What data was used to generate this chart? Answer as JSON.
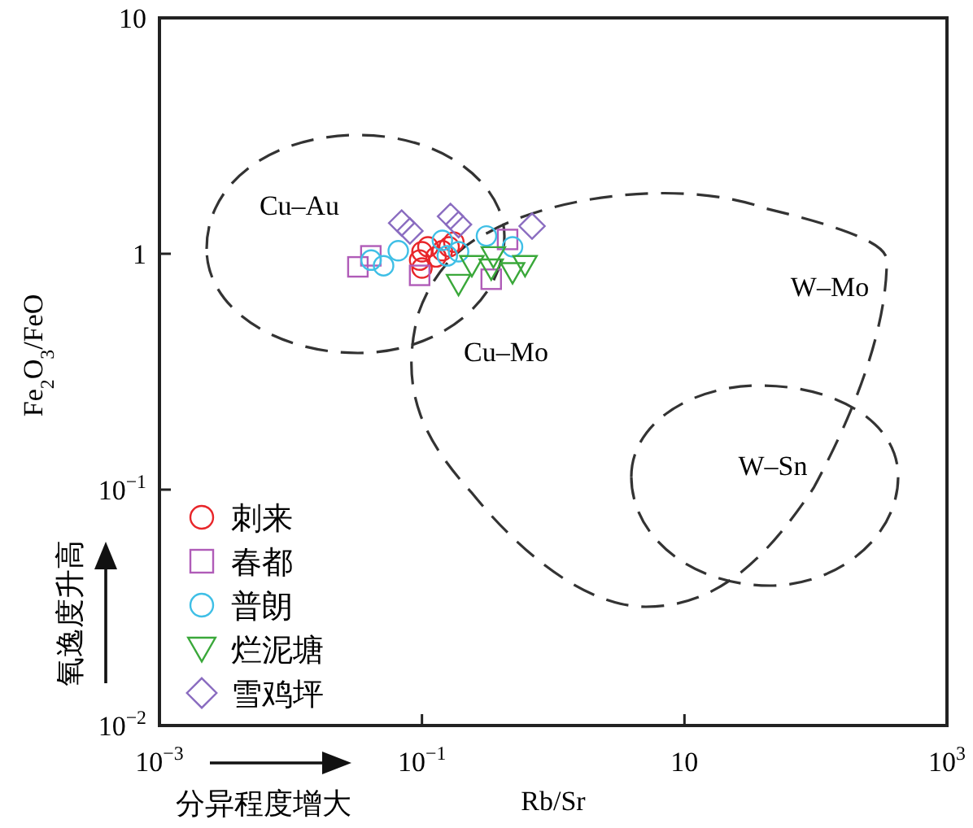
{
  "chart_data": {
    "type": "scatter",
    "xlabel": "Rb/Sr",
    "ylabel": "Fe$_{2}$O$_{3}$/FeO",
    "log": "xy",
    "legend": "bottom left",
    "xlim": [
      0.001,
      1000
    ],
    "ylim": [
      0.01,
      10
    ],
    "xticks": [
      {
        "value": 0.001,
        "label": "10$^{−3}$"
      },
      {
        "value": 0.1,
        "label": "10$^{−1}$"
      },
      10,
      {
        "value": 1000,
        "label": "10$^{3}$"
      }
    ],
    "yticks": [
      {
        "value": 0.01,
        "label": "10$^{−2}$"
      },
      {
        "value": 0.1,
        "label": "10$^{−1}$"
      },
      1,
      10
    ],
    "series": [
      {
        "name": "刺来",
        "color": "#e8262a",
        "marker": "circle",
        "x": [
          0.096,
          0.1,
          0.111,
          0.128,
          0.143,
          0.161,
          0.175,
          0.1
        ],
        "values": [
          0.94,
          1.02,
          1.07,
          0.97,
          1.03,
          1.07,
          1.12,
          0.87
        ]
      },
      {
        "name": "春都",
        "color": "#b05cb8",
        "marker": "square",
        "x": [
          0.0325,
          0.0408,
          0.096,
          0.337,
          0.449
        ],
        "values": [
          0.88,
          0.98,
          0.81,
          0.78,
          1.15
        ]
      },
      {
        "name": "普朗",
        "color": "#3fbfe6",
        "marker": "circle",
        "x": [
          0.041,
          0.051,
          0.066,
          0.156,
          0.19,
          0.31,
          0.49,
          0.143
        ],
        "values": [
          0.94,
          0.89,
          1.03,
          0.98,
          1.02,
          1.19,
          1.07,
          1.14
        ]
      },
      {
        "name": "烂泥塘",
        "color": "#3aa83a",
        "marker": "triangle",
        "x": [
          0.19,
          0.24,
          0.337,
          0.49,
          0.61,
          0.35
        ],
        "values": [
          0.74,
          0.89,
          0.86,
          0.83,
          0.89,
          0.97
        ]
      },
      {
        "name": "雪鸡坪",
        "color": "#8a6cc0",
        "marker": "diamond",
        "x": [
          0.07,
          0.165,
          0.19,
          0.69,
          0.081
        ],
        "values": [
          1.35,
          1.44,
          1.33,
          1.31,
          1.25
        ]
      }
    ],
    "annotations": [
      "Cu–Au",
      "Cu–Mo",
      "W–Mo",
      "W–Sn",
      "氧逸度升高",
      "分异程度增大"
    ]
  }
}
